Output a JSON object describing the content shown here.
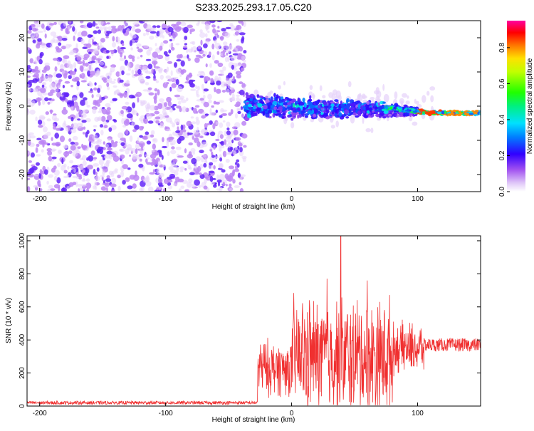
{
  "title": "S233.2025.293.17.05.C20",
  "chart_data": [
    {
      "type": "heatmap",
      "xlabel": "Height of straight line (km)",
      "ylabel": "Frequency (Hz)",
      "xlim": [
        -210,
        150
      ],
      "ylim": [
        -25,
        25
      ],
      "x_ticks": [
        -200,
        -100,
        0,
        100
      ],
      "y_ticks": [
        -20,
        -10,
        0,
        10,
        20
      ],
      "colorbar": {
        "label": "Normalized spectral amplitude",
        "range": [
          0.0,
          0.95
        ],
        "ticks": [
          "0.0",
          "0.2",
          "0.4",
          "0.6",
          "0.8"
        ],
        "tick_values": [
          0.0,
          0.2,
          0.4,
          0.6,
          0.8
        ]
      },
      "regions": [
        {
          "name": "noise",
          "x_range": [
            -210,
            -37
          ],
          "freq_range": [
            -25,
            25
          ],
          "typical_amplitude": 0.05
        },
        {
          "name": "signal-band",
          "x_range": [
            -37,
            100
          ],
          "freq_center": 0,
          "freq_halfwidth": 5,
          "typical_amplitude": 0.2
        },
        {
          "name": "narrow-band",
          "x_range": [
            75,
            150
          ],
          "freq_center": -2,
          "freq_halfwidth": 1,
          "typical_amplitude": 0.9
        }
      ]
    },
    {
      "type": "line",
      "xlabel": "Height of straight line (km)",
      "ylabel": "SNR (10 * v/v)",
      "xlim": [
        -210,
        150
      ],
      "ylim": [
        0,
        1030
      ],
      "x_ticks": [
        -200,
        -100,
        0,
        100
      ],
      "y_ticks": [
        0,
        200,
        400,
        600,
        800,
        1000
      ],
      "color": "#f03030",
      "series": [
        {
          "name": "SNR",
          "segments": [
            {
              "x_range": [
                -210,
                -27
              ],
              "mean": 20,
              "spread": 10
            },
            {
              "x_range": [
                -27,
                0
              ],
              "mean": 230,
              "spread": 200
            },
            {
              "x_range": [
                0,
                80
              ],
              "mean": 300,
              "spread": 420
            },
            {
              "x_range": [
                80,
                105
              ],
              "mean": 350,
              "spread": 180
            },
            {
              "x_range": [
                105,
                150
              ],
              "mean": 370,
              "spread": 40
            }
          ],
          "peaks": [
            {
              "x": 39,
              "y": 1030
            },
            {
              "x": 28,
              "y": 770
            },
            {
              "x": 60,
              "y": 760
            }
          ]
        }
      ]
    }
  ]
}
